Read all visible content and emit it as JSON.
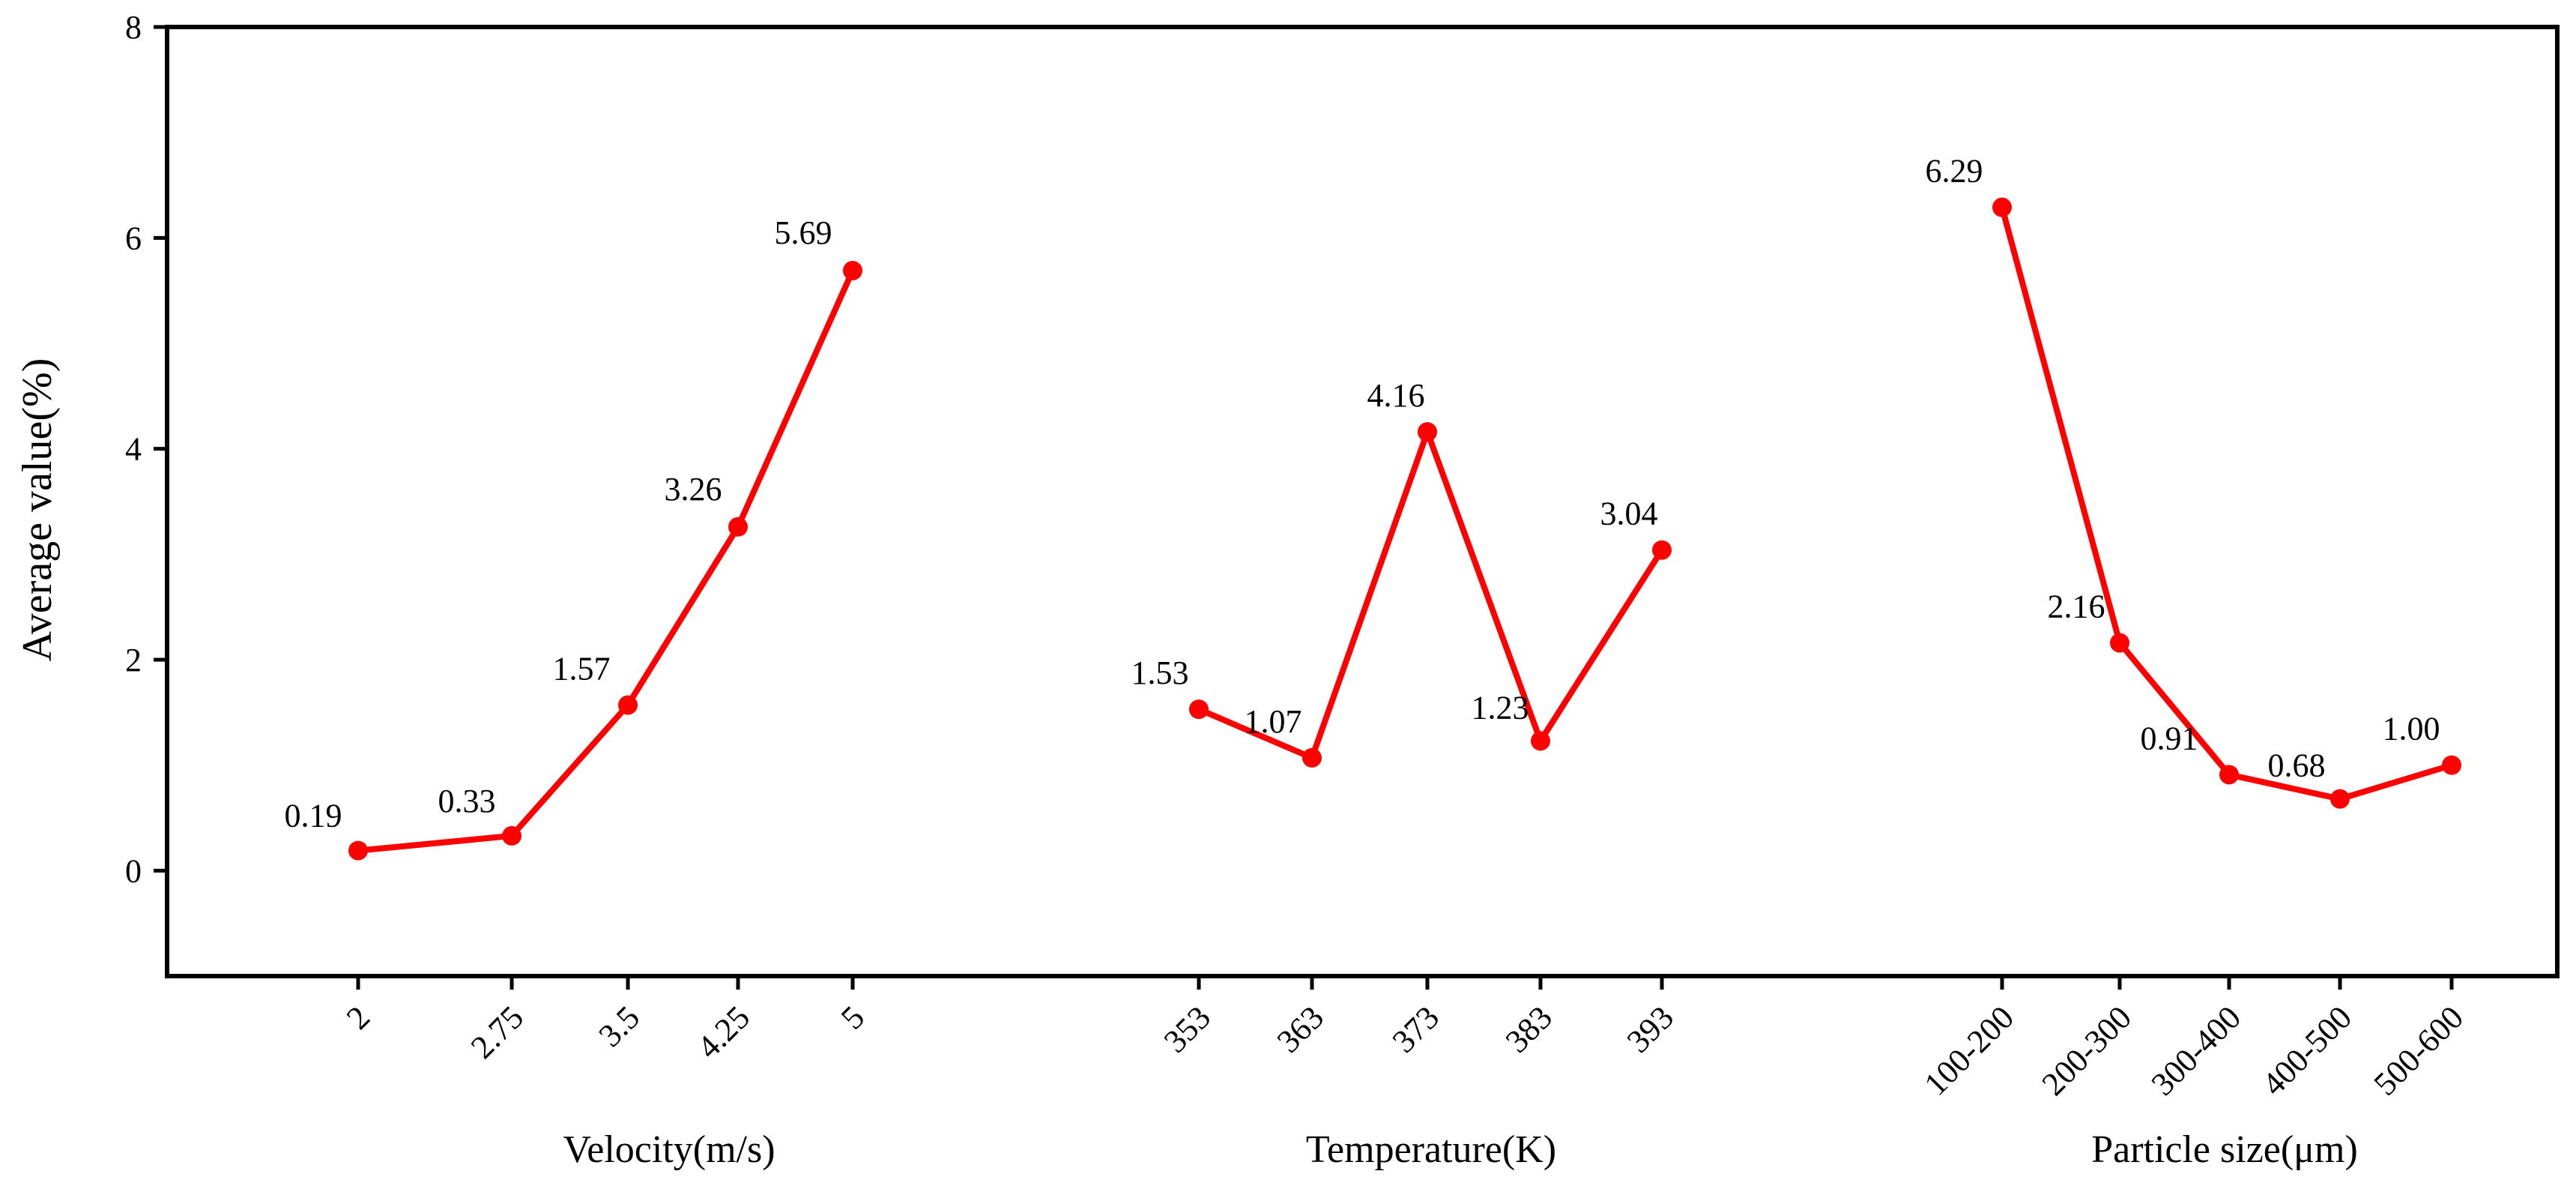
{
  "chart_data": {
    "type": "line",
    "ylabel": "Average value(%)",
    "ylim": [
      -1,
      8
    ],
    "yticks": [
      0,
      2,
      4,
      6,
      8
    ],
    "series_color": "#ff0000",
    "groups": [
      {
        "name": "velocity",
        "xlabel": "Velocity(m/s)",
        "categories": [
          "2",
          "2.75",
          "3.5",
          "4.25",
          "5"
        ],
        "values": [
          0.19,
          0.33,
          1.57,
          3.26,
          5.69
        ],
        "labels": [
          "0.19",
          "0.33",
          "1.57",
          "3.26",
          "5.69"
        ]
      },
      {
        "name": "temperature",
        "xlabel": "Temperature(K)",
        "categories": [
          "353",
          "363",
          "373",
          "383",
          "393"
        ],
        "values": [
          1.53,
          1.07,
          4.16,
          1.23,
          3.04
        ],
        "labels": [
          "1.53",
          "1.07",
          "4.16",
          "1.23",
          "3.04"
        ]
      },
      {
        "name": "particle-size",
        "xlabel": "Particle size(μm)",
        "categories": [
          "100-200",
          "200-300",
          "300-400",
          "400-500",
          "500-600"
        ],
        "values": [
          6.29,
          2.16,
          0.91,
          0.68,
          1.0
        ],
        "labels": [
          "6.29",
          "2.16",
          "0.91",
          "0.68",
          "1.00"
        ]
      }
    ]
  }
}
